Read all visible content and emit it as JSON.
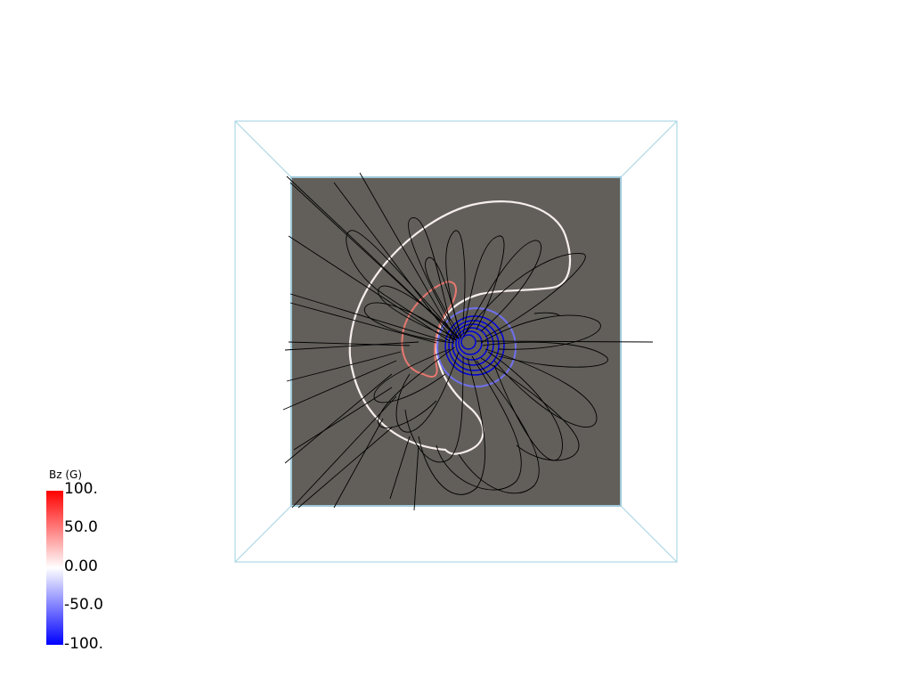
{
  "colorbar": {
    "title": "Bz (G)",
    "ticks": [
      "100.",
      "50.0",
      "0.00",
      "-50.0",
      "-100."
    ],
    "range": [
      -100,
      100
    ],
    "colors": {
      "max": "#ff0000",
      "mid": "#ffffff",
      "min": "#0000ff"
    }
  },
  "scene": {
    "background": "#ffffff",
    "plane_color": "#625f5a",
    "outline_color": "#add8e6",
    "field_line_color": "#000000",
    "contours": [
      {
        "level": 50,
        "color": "#e87870"
      },
      {
        "level": 0,
        "color": "#f8eeee"
      },
      {
        "level": -50,
        "color": "#7070ee"
      },
      {
        "level": -100,
        "color": "#0000dd"
      }
    ]
  }
}
